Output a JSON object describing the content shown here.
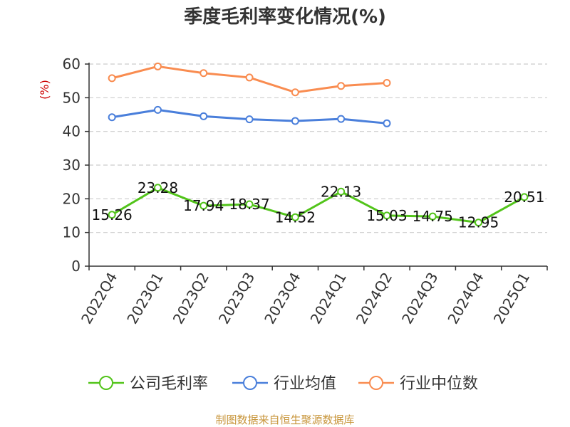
{
  "colors": {
    "company": "#52c41a",
    "industry_avg": "#4a7fdb",
    "industry_median": "#f98c50",
    "grid": "#cccccc",
    "axis": "#333333",
    "unit": "#cc0000",
    "source": "#c8963c"
  },
  "chart_data": {
    "type": "line",
    "title": "季度毛利率变化情况(%)",
    "ylabel": "(%)",
    "xlabel": "",
    "ylim": [
      0,
      60
    ],
    "yticks": [
      "0",
      "10",
      "20",
      "30",
      "40",
      "50",
      "60"
    ],
    "grid": true,
    "legend_position": "bottom",
    "categories": [
      "2022Q4",
      "2023Q1",
      "2023Q2",
      "2023Q3",
      "2023Q4",
      "2024Q1",
      "2024Q2",
      "2024Q3",
      "2024Q4",
      "2025Q1"
    ],
    "series": [
      {
        "name": "公司毛利率",
        "values": [
          15.26,
          23.28,
          17.94,
          18.37,
          14.52,
          22.13,
          15.03,
          14.75,
          12.95,
          20.51
        ],
        "labels": [
          "15.26",
          "23.28",
          "17.94",
          "18.37",
          "14.52",
          "22.13",
          "15.03",
          "14.75",
          "12.95",
          "20.51"
        ]
      },
      {
        "name": "行业均值",
        "values": [
          44.2,
          46.4,
          44.5,
          43.6,
          43.1,
          43.7,
          42.4,
          null,
          null,
          null
        ]
      },
      {
        "name": "行业中位数",
        "values": [
          55.8,
          59.3,
          57.3,
          56.0,
          51.6,
          53.5,
          54.4,
          null,
          null,
          null
        ]
      }
    ]
  },
  "footer": {
    "source": "制图数据来自恒生聚源数据库"
  }
}
